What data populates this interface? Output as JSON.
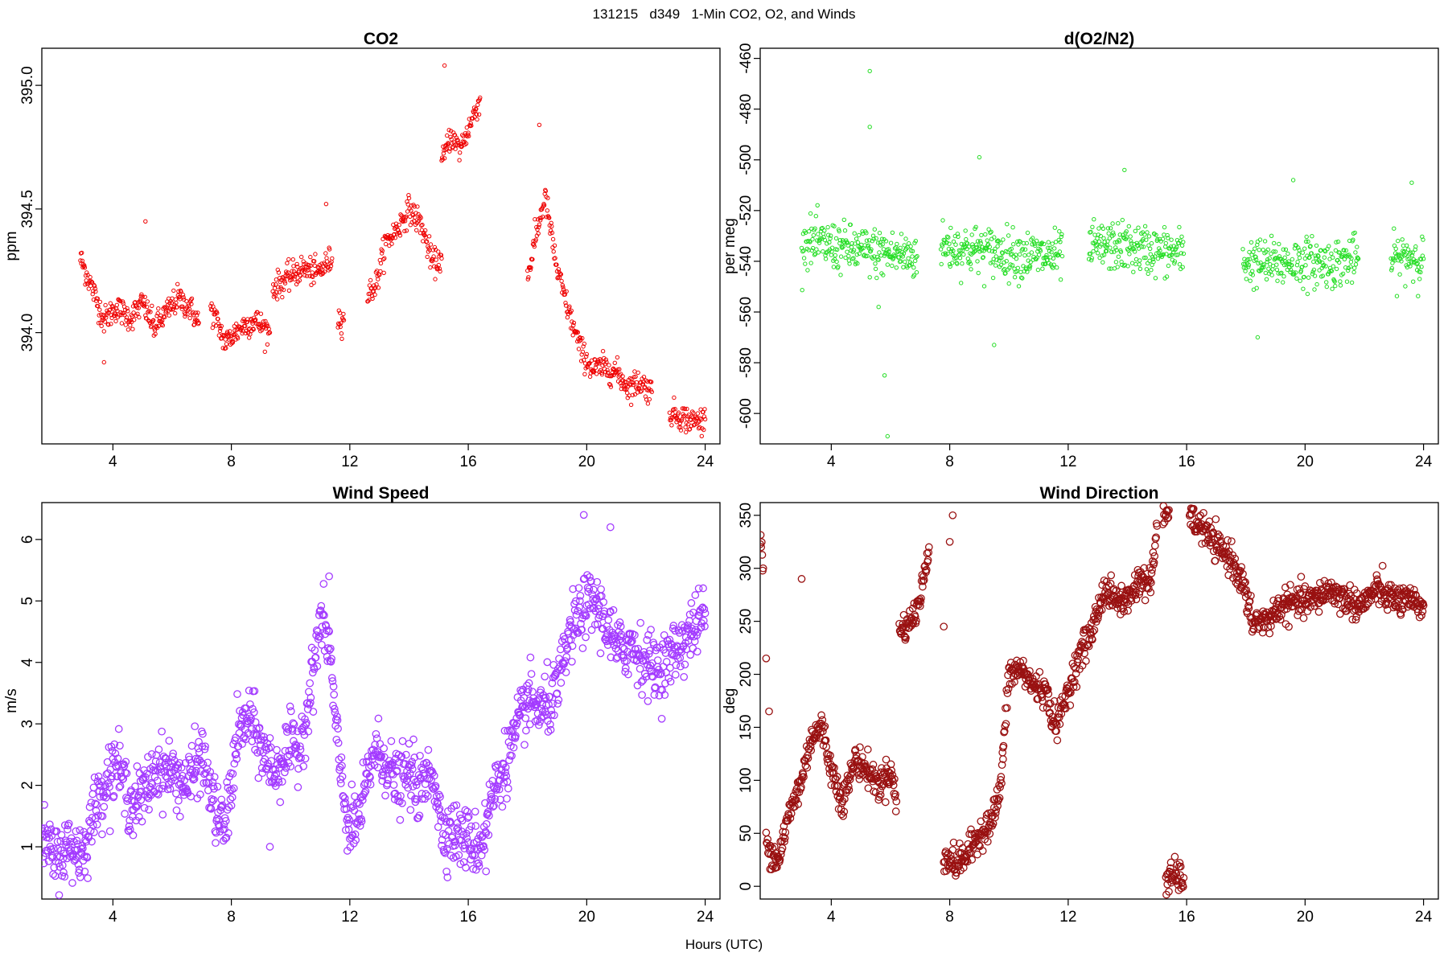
{
  "figure": {
    "suptitle": "131215   d349   1-Min CO2, O2, and Winds",
    "xlabel": "Hours (UTC)"
  },
  "chart_data": [
    {
      "type": "scatter",
      "title": "CO2",
      "xlabel": "",
      "ylabel": "ppm",
      "xlim": [
        1.6,
        24.5
      ],
      "ylim": [
        393.55,
        395.15
      ],
      "xticks": [
        4,
        8,
        12,
        16,
        20,
        24
      ],
      "yticks": [
        394.0,
        394.5,
        395.0
      ],
      "ytick_labels": [
        "394.0",
        "394.5",
        "395.0"
      ],
      "color": "#ee0000",
      "marker_radius": 2.2,
      "segments": [
        [
          [
            2.9,
            394.3
          ],
          [
            3.3,
            394.18
          ],
          [
            3.7,
            394.05
          ],
          [
            4.1,
            394.1
          ],
          [
            4.6,
            394.06
          ],
          [
            5.0,
            394.12
          ],
          [
            5.4,
            394.02
          ],
          [
            5.8,
            394.08
          ],
          [
            6.2,
            394.14
          ],
          [
            6.6,
            394.1
          ],
          [
            6.9,
            394.04
          ]
        ],
        [
          [
            7.3,
            394.1
          ],
          [
            7.8,
            393.96
          ],
          [
            8.3,
            394.02
          ],
          [
            8.8,
            394.05
          ],
          [
            9.3,
            394.0
          ]
        ],
        [
          [
            9.4,
            394.18
          ],
          [
            9.9,
            394.22
          ],
          [
            10.4,
            394.26
          ],
          [
            10.9,
            394.24
          ],
          [
            11.4,
            394.3
          ]
        ],
        [
          [
            11.6,
            394.06
          ],
          [
            11.8,
            394.05
          ]
        ],
        [
          [
            12.6,
            394.15
          ],
          [
            12.9,
            394.2
          ],
          [
            13.2,
            394.36
          ],
          [
            13.6,
            394.42
          ],
          [
            14.0,
            394.5
          ],
          [
            14.4,
            394.44
          ],
          [
            14.8,
            394.28
          ],
          [
            15.1,
            394.3
          ]
        ],
        [
          [
            15.1,
            394.68
          ],
          [
            15.4,
            394.8
          ],
          [
            15.7,
            394.74
          ],
          [
            16.0,
            394.82
          ],
          [
            16.4,
            394.95
          ]
        ],
        [
          [
            18.0,
            394.22
          ],
          [
            18.3,
            394.4
          ],
          [
            18.6,
            394.55
          ],
          [
            19.0,
            394.25
          ],
          [
            19.4,
            394.08
          ],
          [
            19.8,
            393.93
          ],
          [
            20.2,
            393.85
          ],
          [
            20.6,
            393.86
          ],
          [
            21.0,
            393.84
          ],
          [
            21.4,
            393.78
          ],
          [
            21.8,
            393.8
          ],
          [
            22.2,
            393.76
          ]
        ],
        [
          [
            22.8,
            393.68
          ],
          [
            23.2,
            393.66
          ],
          [
            23.6,
            393.64
          ],
          [
            24.0,
            393.65
          ]
        ]
      ],
      "noise": 0.045,
      "outliers": [
        [
          15.2,
          395.08
        ],
        [
          5.1,
          394.45
        ],
        [
          18.4,
          394.84
        ],
        [
          11.2,
          394.52
        ],
        [
          3.7,
          393.88
        ]
      ]
    },
    {
      "type": "scatter",
      "title": "d(O2/N2)",
      "xlabel": "",
      "ylabel": "per meg",
      "xlim": [
        1.6,
        24.5
      ],
      "ylim": [
        -612,
        -456
      ],
      "xticks": [
        4,
        8,
        12,
        16,
        20,
        24
      ],
      "yticks": [
        -600,
        -580,
        -560,
        -540,
        -520,
        -500,
        -480,
        -460
      ],
      "ytick_labels": [
        "-600",
        "-580",
        "-560",
        "-540",
        "-520",
        "-500",
        "-480",
        "-460"
      ],
      "color": "#22dd22",
      "marker_radius": 2.2,
      "segments": [
        [
          [
            3.0,
            -532
          ],
          [
            4.0,
            -534
          ],
          [
            5.0,
            -536
          ],
          [
            6.0,
            -537
          ],
          [
            6.9,
            -538
          ]
        ],
        [
          [
            7.7,
            -534
          ],
          [
            8.5,
            -535
          ],
          [
            9.3,
            -536
          ],
          [
            10.1,
            -537
          ],
          [
            11.0,
            -538
          ],
          [
            11.8,
            -538
          ]
        ],
        [
          [
            12.7,
            -535
          ],
          [
            13.5,
            -534
          ],
          [
            14.3,
            -535
          ],
          [
            15.0,
            -536
          ],
          [
            15.9,
            -537
          ]
        ],
        [
          [
            17.9,
            -540
          ],
          [
            18.8,
            -541
          ],
          [
            19.8,
            -540
          ],
          [
            20.8,
            -541
          ],
          [
            21.8,
            -539
          ]
        ],
        [
          [
            22.9,
            -540
          ],
          [
            23.5,
            -538
          ],
          [
            24.0,
            -539
          ]
        ]
      ],
      "noise": 8,
      "outliers": [
        [
          5.3,
          -465
        ],
        [
          5.3,
          -487
        ],
        [
          5.8,
          -585
        ],
        [
          5.9,
          -609
        ],
        [
          9.5,
          -573
        ],
        [
          9.0,
          -499
        ],
        [
          18.4,
          -570
        ],
        [
          23.6,
          -509
        ],
        [
          13.9,
          -504
        ],
        [
          19.6,
          -508
        ],
        [
          5.6,
          -558
        ]
      ]
    },
    {
      "type": "scatter",
      "title": "Wind Speed",
      "xlabel": "",
      "ylabel": "m/s",
      "xlim": [
        1.6,
        24.5
      ],
      "ylim": [
        0.15,
        6.6
      ],
      "xticks": [
        4,
        8,
        12,
        16,
        20,
        24
      ],
      "yticks": [
        1,
        2,
        3,
        4,
        5,
        6
      ],
      "ytick_labels": [
        "1",
        "2",
        "3",
        "4",
        "5",
        "6"
      ],
      "color": "#a33bff",
      "marker_radius": 4.2,
      "segments": [
        [
          [
            1.6,
            1.2
          ],
          [
            2.0,
            0.8
          ],
          [
            2.5,
            1.0
          ],
          [
            3.0,
            0.9
          ],
          [
            3.3,
            1.5
          ],
          [
            3.7,
            2.0
          ],
          [
            4.1,
            2.4
          ],
          [
            4.6,
            1.7
          ],
          [
            5.0,
            1.8
          ],
          [
            5.5,
            2.3
          ],
          [
            6.0,
            2.2
          ],
          [
            6.5,
            2.0
          ],
          [
            7.0,
            2.5
          ],
          [
            7.5,
            1.5
          ],
          [
            7.8,
            1.3
          ],
          [
            8.2,
            2.8
          ],
          [
            8.6,
            3.1
          ],
          [
            9.1,
            2.5
          ],
          [
            9.5,
            2.2
          ],
          [
            9.9,
            2.6
          ],
          [
            10.3,
            2.6
          ],
          [
            10.7,
            3.6
          ],
          [
            11.0,
            4.7
          ],
          [
            11.3,
            4.3
          ],
          [
            11.6,
            2.5
          ],
          [
            12.0,
            1.2
          ],
          [
            12.4,
            1.6
          ],
          [
            12.8,
            2.6
          ],
          [
            13.2,
            2.4
          ],
          [
            13.6,
            2.0
          ],
          [
            14.0,
            2.2
          ],
          [
            14.4,
            1.9
          ],
          [
            14.8,
            2.3
          ],
          [
            15.1,
            1.3
          ],
          [
            15.6,
            1.2
          ],
          [
            16.0,
            1.1
          ],
          [
            16.4,
            1.0
          ],
          [
            16.8,
            1.8
          ],
          [
            17.2,
            2.3
          ],
          [
            17.6,
            2.8
          ],
          [
            18.0,
            3.4
          ],
          [
            18.5,
            3.2
          ],
          [
            19.0,
            3.5
          ],
          [
            19.4,
            4.4
          ],
          [
            19.8,
            4.8
          ],
          [
            20.2,
            5.0
          ],
          [
            20.6,
            4.7
          ],
          [
            21.0,
            4.2
          ],
          [
            21.5,
            4.3
          ],
          [
            22.0,
            4.0
          ],
          [
            22.5,
            3.9
          ],
          [
            23.0,
            4.2
          ],
          [
            23.5,
            4.5
          ],
          [
            24.0,
            4.8
          ]
        ]
      ],
      "noise": 0.42,
      "outliers": [
        [
          19.9,
          6.4
        ],
        [
          20.8,
          6.2
        ],
        [
          11.3,
          5.4
        ],
        [
          9.3,
          1.0
        ],
        [
          16.6,
          0.6
        ]
      ]
    },
    {
      "type": "scatter",
      "title": "Wind Direction",
      "xlabel": "",
      "ylabel": "deg",
      "xlim": [
        1.6,
        24.5
      ],
      "ylim": [
        -12,
        362
      ],
      "xticks": [
        4,
        8,
        12,
        16,
        20,
        24
      ],
      "yticks": [
        0,
        50,
        100,
        150,
        200,
        250,
        300,
        350
      ],
      "ytick_labels": [
        "0",
        "50",
        "100",
        "150",
        "200",
        "250",
        "300",
        "350"
      ],
      "color": "#991111",
      "marker_radius": 4.2,
      "segments": [
        [
          [
            1.6,
            330
          ],
          [
            1.7,
            300
          ]
        ],
        [
          [
            1.8,
            40
          ],
          [
            2.2,
            25
          ],
          [
            2.6,
            70
          ],
          [
            3.0,
            100
          ],
          [
            3.3,
            140
          ],
          [
            3.7,
            150
          ],
          [
            4.0,
            110
          ],
          [
            4.4,
            80
          ],
          [
            4.8,
            120
          ],
          [
            5.2,
            110
          ],
          [
            5.6,
            95
          ],
          [
            6.0,
            110
          ],
          [
            6.2,
            80
          ]
        ],
        [
          [
            6.3,
            240
          ],
          [
            6.7,
            250
          ],
          [
            7.0,
            270
          ],
          [
            7.3,
            320
          ]
        ],
        [
          [
            7.8,
            30
          ],
          [
            8.2,
            20
          ],
          [
            8.6,
            30
          ],
          [
            9.0,
            50
          ],
          [
            9.4,
            60
          ],
          [
            9.7,
            90
          ],
          [
            10.0,
            200
          ],
          [
            10.4,
            205
          ],
          [
            10.8,
            190
          ],
          [
            11.2,
            185
          ],
          [
            11.6,
            150
          ],
          [
            12.0,
            185
          ],
          [
            12.4,
            220
          ],
          [
            12.8,
            240
          ],
          [
            13.2,
            280
          ],
          [
            13.6,
            270
          ],
          [
            14.0,
            270
          ],
          [
            14.4,
            290
          ],
          [
            14.8,
            285
          ],
          [
            15.0,
            340
          ]
        ],
        [
          [
            15.2,
            350
          ],
          [
            15.4,
            355
          ]
        ],
        [
          [
            15.3,
            5
          ],
          [
            15.6,
            10
          ],
          [
            15.9,
            8
          ]
        ],
        [
          [
            16.1,
            345
          ],
          [
            16.5,
            340
          ],
          [
            17.0,
            320
          ],
          [
            17.5,
            310
          ],
          [
            17.9,
            285
          ],
          [
            18.2,
            250
          ],
          [
            18.7,
            250
          ],
          [
            19.2,
            265
          ],
          [
            19.8,
            268
          ],
          [
            20.3,
            270
          ],
          [
            20.8,
            280
          ],
          [
            21.4,
            270
          ],
          [
            21.9,
            265
          ],
          [
            22.4,
            280
          ],
          [
            22.9,
            272
          ],
          [
            23.4,
            268
          ],
          [
            24.0,
            265
          ]
        ]
      ],
      "noise": 12,
      "outliers": [
        [
          1.9,
          165
        ],
        [
          1.8,
          215
        ],
        [
          3.0,
          290
        ],
        [
          7.8,
          245
        ],
        [
          8.0,
          325
        ],
        [
          8.1,
          350
        ],
        [
          9.8,
          120
        ]
      ]
    }
  ]
}
